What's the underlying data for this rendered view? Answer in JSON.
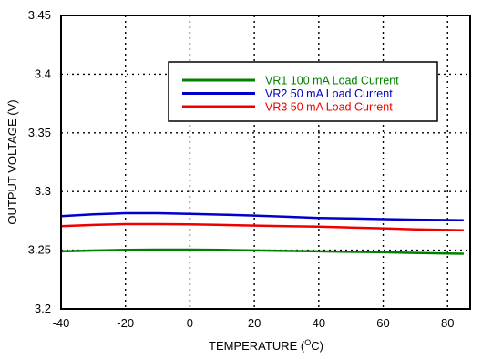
{
  "chart_data": {
    "type": "line",
    "xlabel": "TEMPERATURE (",
    "xlabel_super": "O",
    "xlabel_suffix": "C)",
    "ylabel": "OUTPUT VOLTAGE (V)",
    "xlim": [
      -40,
      87
    ],
    "ylim": [
      3.2,
      3.45
    ],
    "x_ticks": [
      -40,
      -20,
      0,
      20,
      40,
      60,
      80
    ],
    "x_tick_labels": [
      "-40",
      "-20",
      "0",
      "20",
      "40",
      "60",
      "80"
    ],
    "y_ticks": [
      3.2,
      3.25,
      3.3,
      3.35,
      3.4,
      3.45
    ],
    "y_tick_labels": [
      "3.2",
      "3.25",
      "3.3",
      "3.35",
      "3.4",
      "3.45"
    ],
    "grid": true,
    "legend_position": "top-right",
    "series": [
      {
        "name": "VR1 100 mA Load Current",
        "color": "#008000",
        "x": [
          -40,
          -30,
          -20,
          -10,
          0,
          10,
          20,
          30,
          40,
          50,
          60,
          70,
          80,
          85
        ],
        "y": [
          3.249,
          3.2497,
          3.2502,
          3.2505,
          3.2505,
          3.2502,
          3.2498,
          3.2494,
          3.249,
          3.2486,
          3.2482,
          3.2477,
          3.2472,
          3.247
        ]
      },
      {
        "name": "VR2 50 mA Load Current",
        "color": "#0000cc",
        "x": [
          -40,
          -30,
          -20,
          -10,
          0,
          10,
          20,
          30,
          40,
          50,
          60,
          70,
          80,
          85
        ],
        "y": [
          3.279,
          3.2805,
          3.2815,
          3.2815,
          3.281,
          3.2803,
          3.2795,
          3.2785,
          3.2775,
          3.277,
          3.2765,
          3.276,
          3.2757,
          3.2755
        ]
      },
      {
        "name": "VR3 50 mA Load Current",
        "color": "#ee0000",
        "x": [
          -40,
          -30,
          -20,
          -10,
          0,
          10,
          20,
          30,
          40,
          50,
          60,
          70,
          80,
          85
        ],
        "y": [
          3.2705,
          3.2715,
          3.2722,
          3.2722,
          3.272,
          3.2715,
          3.271,
          3.2705,
          3.27,
          3.2693,
          3.2686,
          3.2678,
          3.2672,
          3.267
        ]
      }
    ]
  }
}
